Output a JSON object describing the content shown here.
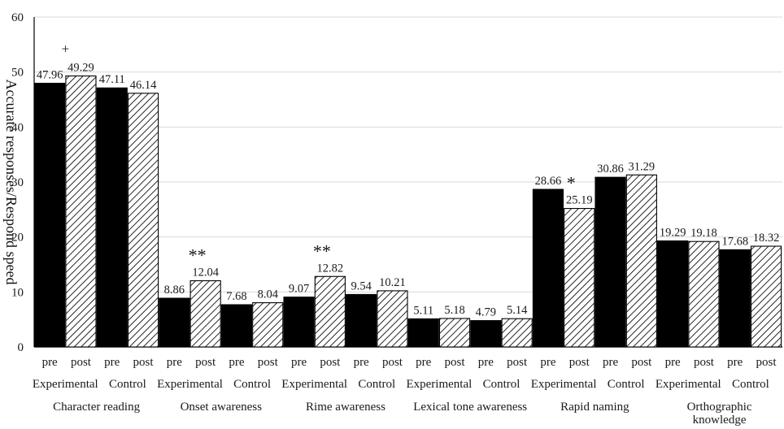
{
  "chart_data": {
    "type": "bar",
    "ylabel": "Accurate responses/Respond speed",
    "ylim": [
      0,
      60
    ],
    "yticks": [
      0,
      10,
      20,
      30,
      40,
      50,
      60
    ],
    "grid": true,
    "colors": {
      "pre": "#000000",
      "post_hatch": "#000000",
      "grid": "#d9d9d9"
    },
    "groups": [
      {
        "name": "Character reading",
        "conditions": [
          {
            "name": "Experimental",
            "pre": 47.96,
            "post": 49.29,
            "pre_label": "47.96",
            "post_label": "49.29",
            "mark": "+"
          },
          {
            "name": "Control",
            "pre": 47.11,
            "post": 46.14,
            "pre_label": "47.11",
            "post_label": "46.14",
            "mark": ""
          }
        ]
      },
      {
        "name": "Onset awareness",
        "conditions": [
          {
            "name": "Experimental",
            "pre": 8.86,
            "post": 12.04,
            "pre_label": "8.86",
            "post_label": "12.04",
            "mark": "**"
          },
          {
            "name": "Control",
            "pre": 7.68,
            "post": 8.04,
            "pre_label": "7.68",
            "post_label": "8.04",
            "mark": ""
          }
        ]
      },
      {
        "name": "Rime awareness",
        "conditions": [
          {
            "name": "Experimental",
            "pre": 9.07,
            "post": 12.82,
            "pre_label": "9.07",
            "post_label": "12.82",
            "mark": "**"
          },
          {
            "name": "Control",
            "pre": 9.54,
            "post": 10.21,
            "pre_label": "9.54",
            "post_label": "10.21",
            "mark": ""
          }
        ]
      },
      {
        "name": "Lexical tone awareness",
        "conditions": [
          {
            "name": "Experimental",
            "pre": 5.11,
            "post": 5.18,
            "pre_label": "5.11",
            "post_label": "5.18",
            "mark": ""
          },
          {
            "name": "Control",
            "pre": 4.79,
            "post": 5.14,
            "pre_label": "4.79",
            "post_label": "5.14",
            "mark": ""
          }
        ]
      },
      {
        "name": "Rapid naming",
        "conditions": [
          {
            "name": "Experimental",
            "pre": 28.66,
            "post": 25.19,
            "pre_label": "28.66",
            "post_label": "25.19",
            "mark": "*"
          },
          {
            "name": "Control",
            "pre": 30.86,
            "post": 31.29,
            "pre_label": "30.86",
            "post_label": "31.29",
            "mark": ""
          }
        ]
      },
      {
        "name": "Orthographic knowledge",
        "name_lines": [
          "Orthographic",
          "knowledge"
        ],
        "conditions": [
          {
            "name": "Experimental",
            "pre": 19.29,
            "post": 19.18,
            "pre_label": "19.29",
            "post_label": "19.18",
            "mark": ""
          },
          {
            "name": "Control",
            "pre": 17.68,
            "post": 18.32,
            "pre_label": "17.68",
            "post_label": "18.32",
            "mark": ""
          }
        ]
      }
    ],
    "bar_labels": {
      "pre": "pre",
      "post": "post"
    }
  }
}
